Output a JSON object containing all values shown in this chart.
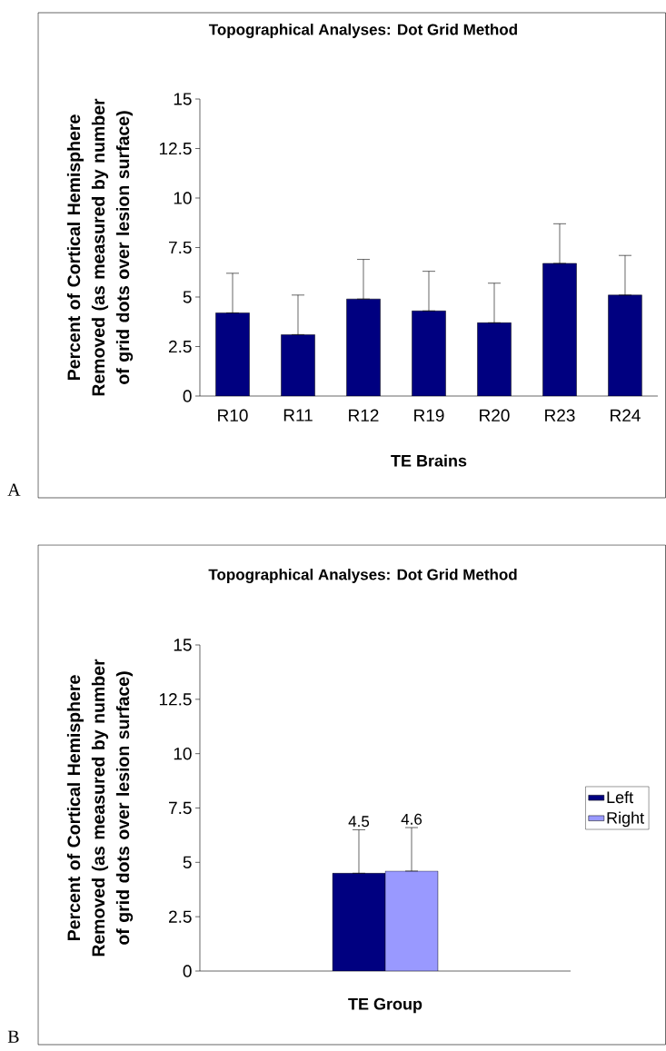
{
  "chart_data": [
    {
      "type": "bar",
      "title": "Topographical Analyses:  Dot Grid Method",
      "xlabel": "TE Brains",
      "ylabel": "Percent of Cortical Hemisphere Removed (as measured by number of grid dots over lesion surface)",
      "categories": [
        "R10",
        "R11",
        "R12",
        "R19",
        "R20",
        "R23",
        "R24"
      ],
      "values": [
        4.2,
        3.1,
        4.9,
        4.3,
        3.7,
        6.7,
        5.1
      ],
      "errors": [
        [
          4.2,
          6.2
        ],
        [
          3.1,
          5.1
        ],
        [
          4.9,
          6.9
        ],
        [
          4.3,
          6.3
        ],
        [
          3.7,
          5.7
        ],
        [
          6.7,
          8.7
        ],
        [
          5.1,
          7.1
        ]
      ],
      "color": "#000080",
      "ylim": [
        0,
        15
      ],
      "yticks": [
        0,
        2.5,
        5,
        7.5,
        10,
        12.5,
        15
      ],
      "annotations": [
        "A"
      ]
    },
    {
      "type": "bar",
      "title": "Topographical Analyses:  Dot Grid Method",
      "xlabel": "TE Group",
      "ylabel": "Percent of Cortical Hemisphere Removed (as measured by number of grid dots over lesion surface)",
      "categories": [
        null
      ],
      "series": [
        {
          "name": "Left",
          "color": "#000080",
          "values": [
            4.5
          ],
          "value_labels": [
            "4.5"
          ],
          "errors": [
            [
              4.5,
              6.5
            ]
          ]
        },
        {
          "name": "Right",
          "color": "#9999ff",
          "values": [
            4.6
          ],
          "value_labels": [
            "4.6"
          ],
          "errors": [
            [
              4.6,
              6.6
            ]
          ]
        }
      ],
      "ylim": [
        0,
        15
      ],
      "yticks": [
        0,
        2.5,
        5,
        7.5,
        10,
        12.5,
        15
      ],
      "legend": "right",
      "annotations": [
        "B"
      ]
    }
  ]
}
